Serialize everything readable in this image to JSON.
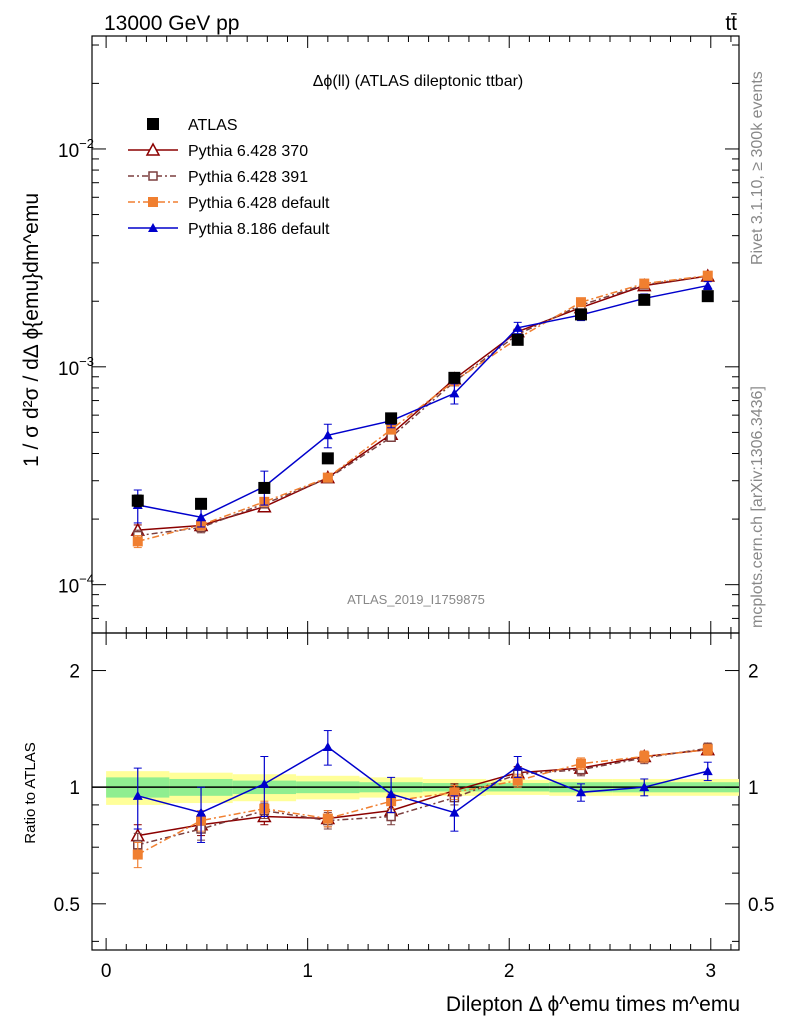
{
  "header": {
    "energy_label": "13000 GeV pp",
    "process_label": "tt̄"
  },
  "side": {
    "rivet_label": "Rivet 3.1.10, ≥ 300k events",
    "url_label": "mcplots.cern.ch [arXiv:1306.3436]"
  },
  "chart_data": {
    "type": "line",
    "title": "Δϕ(ll) (ATLAS dileptonic ttbar)",
    "watermark": "ATLAS_2019_I1759875",
    "ylabel": "1 / σ  d²σ / dΔ ϕ{emu}dm^emu",
    "xlabel": "Dilepton Δ ϕ^emu times m^emu",
    "ratio_ylabel": "Ratio to ATLAS",
    "xlim": [
      -0.07,
      3.14
    ],
    "ylim": [
      6e-05,
      0.033
    ],
    "yscale": "log",
    "ratio_ylim": [
      0.38,
      2.5
    ],
    "ratio_yscale": "log",
    "x_ticks": [
      0,
      1,
      2,
      3
    ],
    "x_tick_labels": [
      "0",
      "1",
      "2",
      "3"
    ],
    "y_tick_labels": [
      {
        "value": 0.0001,
        "base": "10",
        "exp": "−4"
      },
      {
        "value": 0.001,
        "base": "10",
        "exp": "−3"
      },
      {
        "value": 0.01,
        "base": "10",
        "exp": "−2"
      }
    ],
    "ratio_ticks": [
      0.5,
      1,
      2
    ],
    "ratio_tick_labels": [
      "0.5",
      "1",
      "2"
    ],
    "x": [
      0.157,
      0.471,
      0.785,
      1.1,
      1.414,
      1.728,
      2.042,
      2.356,
      2.67,
      2.985
    ],
    "series": [
      {
        "name": "ATLAS",
        "color": "#000000",
        "marker": "square-filled",
        "values": [
          0.000243,
          0.000235,
          0.000278,
          0.00038,
          0.00058,
          0.00089,
          0.00133,
          0.00174,
          0.00203,
          0.00211
        ],
        "errors": [
          1.5e-05,
          1e-05,
          1e-05,
          1e-05,
          3e-05,
          4e-05,
          5e-05,
          6e-05,
          6e-05,
          6e-05
        ]
      },
      {
        "name": "Pythia 6.428 370",
        "color": "#8b0000",
        "marker": "triangle-open",
        "values": [
          0.000178,
          0.000187,
          0.000228,
          0.00031,
          0.00049,
          0.00088,
          0.00145,
          0.00187,
          0.00236,
          0.00261
        ],
        "errors": [
          1e-05,
          1e-05,
          1e-05,
          1e-05,
          2e-05,
          3e-05,
          4e-05,
          5e-05,
          6e-05,
          7e-05
        ],
        "ratio": [
          0.75,
          0.8,
          0.84,
          0.83,
          0.87,
          0.98,
          1.09,
          1.12,
          1.2,
          1.25
        ],
        "ratio_errors": [
          0.05,
          0.05,
          0.04,
          0.04,
          0.04,
          0.04,
          0.04,
          0.04,
          0.04,
          0.04
        ]
      },
      {
        "name": "Pythia 6.428 391",
        "color": "#7b3f3f",
        "marker": "square-open",
        "values": [
          0.000168,
          0.000183,
          0.000235,
          0.000307,
          0.000475,
          0.000855,
          0.00141,
          0.00192,
          0.00238,
          0.00262
        ],
        "errors": [
          1e-05,
          1e-05,
          1e-05,
          1e-05,
          2e-05,
          3e-05,
          4e-05,
          5e-05,
          6e-05,
          7e-05
        ],
        "ratio": [
          0.71,
          0.78,
          0.87,
          0.82,
          0.84,
          0.94,
          1.08,
          1.11,
          1.19,
          1.26
        ],
        "ratio_errors": [
          0.05,
          0.05,
          0.04,
          0.04,
          0.04,
          0.04,
          0.04,
          0.04,
          0.04,
          0.04
        ]
      },
      {
        "name": "Pythia 6.428 default",
        "color": "#f07f30",
        "marker": "square-filled",
        "dash": "dashdot",
        "values": [
          0.000158,
          0.000188,
          0.00024,
          0.00031,
          0.000515,
          0.00086,
          0.00135,
          0.00198,
          0.00241,
          0.00262
        ],
        "errors": [
          1e-05,
          1e-05,
          1e-05,
          1e-05,
          2e-05,
          3e-05,
          4e-05,
          5e-05,
          6e-05,
          7e-05
        ],
        "ratio": [
          0.67,
          0.82,
          0.88,
          0.83,
          0.92,
          0.97,
          1.04,
          1.15,
          1.2,
          1.25
        ],
        "ratio_errors": [
          0.05,
          0.05,
          0.04,
          0.04,
          0.04,
          0.04,
          0.04,
          0.04,
          0.04,
          0.04
        ]
      },
      {
        "name": "Pythia 8.186 default",
        "color": "#0000cc",
        "marker": "triangle-filled",
        "values": [
          0.000232,
          0.000204,
          0.000282,
          0.000485,
          0.000565,
          0.000755,
          0.00151,
          0.00173,
          0.00206,
          0.00236
        ],
        "errors": [
          4e-05,
          2e-05,
          5e-05,
          6e-05,
          4e-05,
          8e-05,
          9e-05,
          0.0001,
          0.0001,
          0.0001
        ],
        "ratio": [
          0.95,
          0.86,
          1.02,
          1.27,
          0.96,
          0.86,
          1.13,
          0.97,
          1.0,
          1.1
        ],
        "ratio_errors": [
          0.17,
          0.14,
          0.18,
          0.13,
          0.1,
          0.09,
          0.07,
          0.05,
          0.05,
          0.06
        ]
      }
    ],
    "uncertainty_band": {
      "inner_color": "#90ee90",
      "outer_color": "#ffff99",
      "inner": [
        0.06,
        0.05,
        0.04,
        0.035,
        0.03,
        0.025,
        0.025,
        0.03,
        0.03,
        0.03
      ],
      "outer": [
        0.1,
        0.09,
        0.08,
        0.07,
        0.06,
        0.05,
        0.045,
        0.05,
        0.05,
        0.05
      ]
    }
  }
}
